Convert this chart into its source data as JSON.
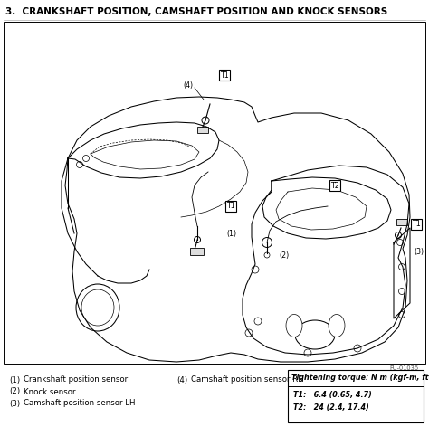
{
  "title": "3.  CRANKSHAFT POSITION, CAMSHAFT POSITION AND KNOCK SENSORS",
  "title_fontsize": 7.5,
  "bg_color": "#ffffff",
  "border_color": "#000000",
  "fig_width": 4.74,
  "fig_height": 4.72,
  "dpi": 100,
  "footer_ref": "FU-01036",
  "legend_left": [
    {
      "num": "(1)",
      "text": "Crankshaft position sensor"
    },
    {
      "num": "(2)",
      "text": "Knock sensor"
    },
    {
      "num": "(3)",
      "text": "Camshaft position sensor LH"
    }
  ],
  "legend_right": [
    {
      "num": "(4)",
      "text": "Camshaft position sensor RH"
    }
  ],
  "torque_header": "Tightening torque: N m (kgf-m, ft-lb)",
  "torque_lines": [
    "T1:   6.4 (0.65, 4.7)",
    "T2:   24 (2.4, 17.4)"
  ],
  "label_color": "#000000",
  "legend_fontsize": 6.2,
  "line_color": "#000000"
}
